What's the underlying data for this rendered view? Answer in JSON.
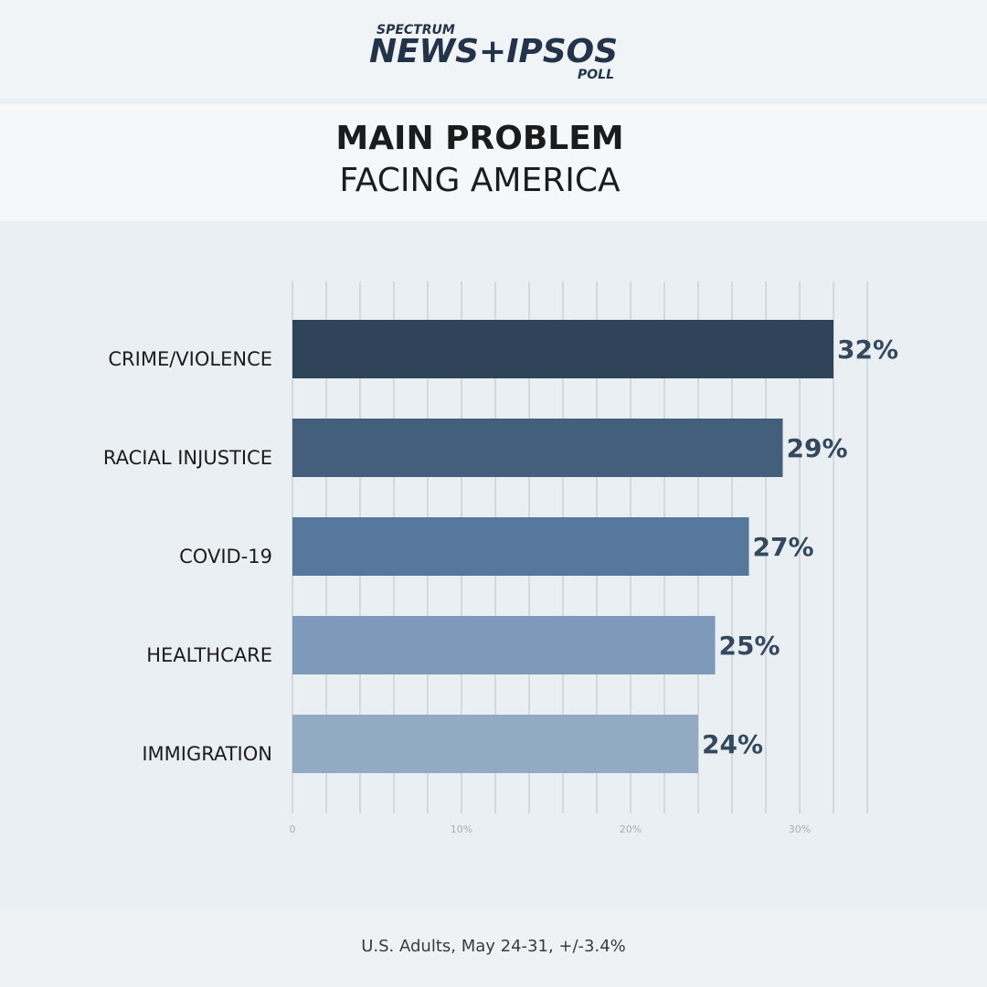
{
  "header": {
    "brand_top": "SPECTRUM",
    "brand": "NEWS+IPSOS",
    "brand_bottom": "POLL"
  },
  "chart_data": {
    "type": "hbar",
    "title": "MAIN PROBLEM",
    "subtitle": "FACING AMERICA",
    "categories": [
      "CRIME/VIOLENCE",
      "RACIAL INJUSTICE",
      "COVID-19",
      "HEALTHCARE",
      "IMMIGRATION"
    ],
    "values": [
      32,
      29,
      27,
      25,
      24
    ],
    "value_labels": [
      "32%",
      "29%",
      "27%",
      "25%",
      "24%"
    ],
    "colors": [
      "#2f4459",
      "#435f7c",
      "#55789c",
      "#7e9aba",
      "#93aac5"
    ],
    "xlim": [
      0,
      34
    ],
    "xticks": [
      0,
      {
        "value": 10,
        "label": "10%"
      },
      {
        "value": 20,
        "label": "20%"
      },
      {
        "value": 30,
        "label": "30%"
      }
    ],
    "grid_lines": [
      0,
      2,
      4,
      6,
      8,
      10,
      12,
      14,
      16,
      18,
      20,
      22,
      24,
      26,
      28,
      30,
      32,
      34
    ],
    "note": "U.S. Adults, May 24-31, +/-3.4%"
  }
}
